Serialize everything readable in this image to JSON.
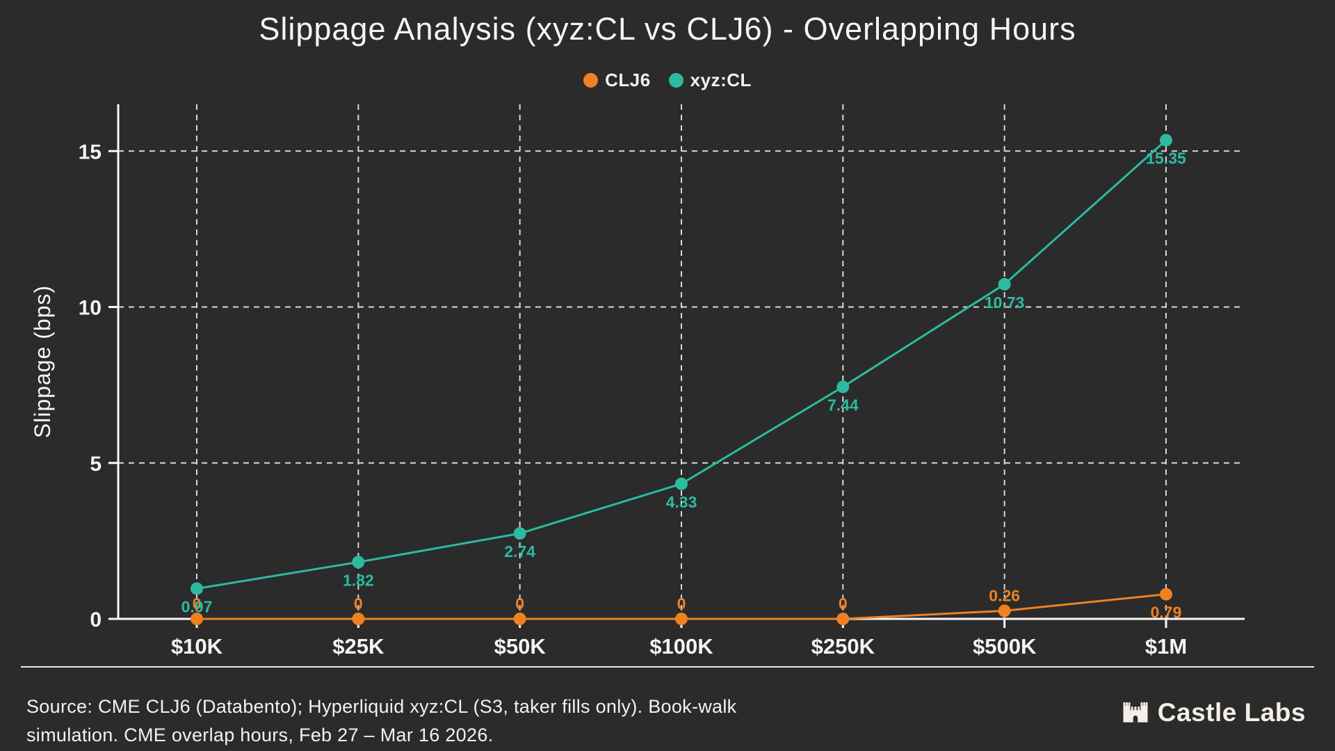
{
  "title": "Slippage Analysis (xyz:CL vs CLJ6) - Overlapping Hours",
  "legend": {
    "items": [
      {
        "label": "CLJ6",
        "color": "#ef8122"
      },
      {
        "label": "xyz:CL",
        "color": "#2cbba1"
      }
    ]
  },
  "chart_data": {
    "type": "line",
    "categories": [
      "$10K",
      "$25K",
      "$50K",
      "$100K",
      "$250K",
      "$500K",
      "$1M"
    ],
    "series": [
      {
        "name": "CLJ6",
        "color": "#ef8122",
        "values": [
          0,
          0,
          0,
          0,
          0,
          0.26,
          0.79
        ],
        "labels": [
          "0",
          "0",
          "0",
          "0",
          "0",
          "0.26",
          "0.79"
        ],
        "label_pos": [
          "above",
          "above",
          "above",
          "above",
          "above",
          "above",
          "below"
        ]
      },
      {
        "name": "xyz:CL",
        "color": "#2cbba1",
        "values": [
          0.97,
          1.82,
          2.74,
          4.33,
          7.44,
          10.73,
          15.35
        ],
        "labels": [
          "0.97",
          "1.82",
          "2.74",
          "4.33",
          "7.44",
          "10.73",
          "15.35"
        ],
        "label_pos": [
          "below",
          "below",
          "below",
          "below",
          "below",
          "below",
          "below"
        ]
      }
    ],
    "title": "Slippage Analysis (xyz:CL vs CLJ6) - Overlapping Hours",
    "xlabel": "",
    "ylabel": "Slippage (bps)",
    "yticks": [
      0,
      5,
      10,
      15
    ],
    "ylim": [
      0,
      16.5
    ],
    "grid": "dashed",
    "legend_position": "top-center"
  },
  "footer": {
    "source_line1": "Source: CME CLJ6 (Databento); Hyperliquid xyz:CL (S3, taker fills only). Book-walk",
    "source_line2": "simulation. CME overlap hours, Feb 27 – Mar 16 2026.",
    "brand": "Castle Labs"
  },
  "colors": {
    "background": "#2b2b2b",
    "text": "#f5f5f5",
    "grid": "#d9d9d9",
    "axis": "#f8f8f8",
    "clj6": "#ef8122",
    "xyzcl": "#2cbba1",
    "brand_text": "#f3efe6"
  }
}
